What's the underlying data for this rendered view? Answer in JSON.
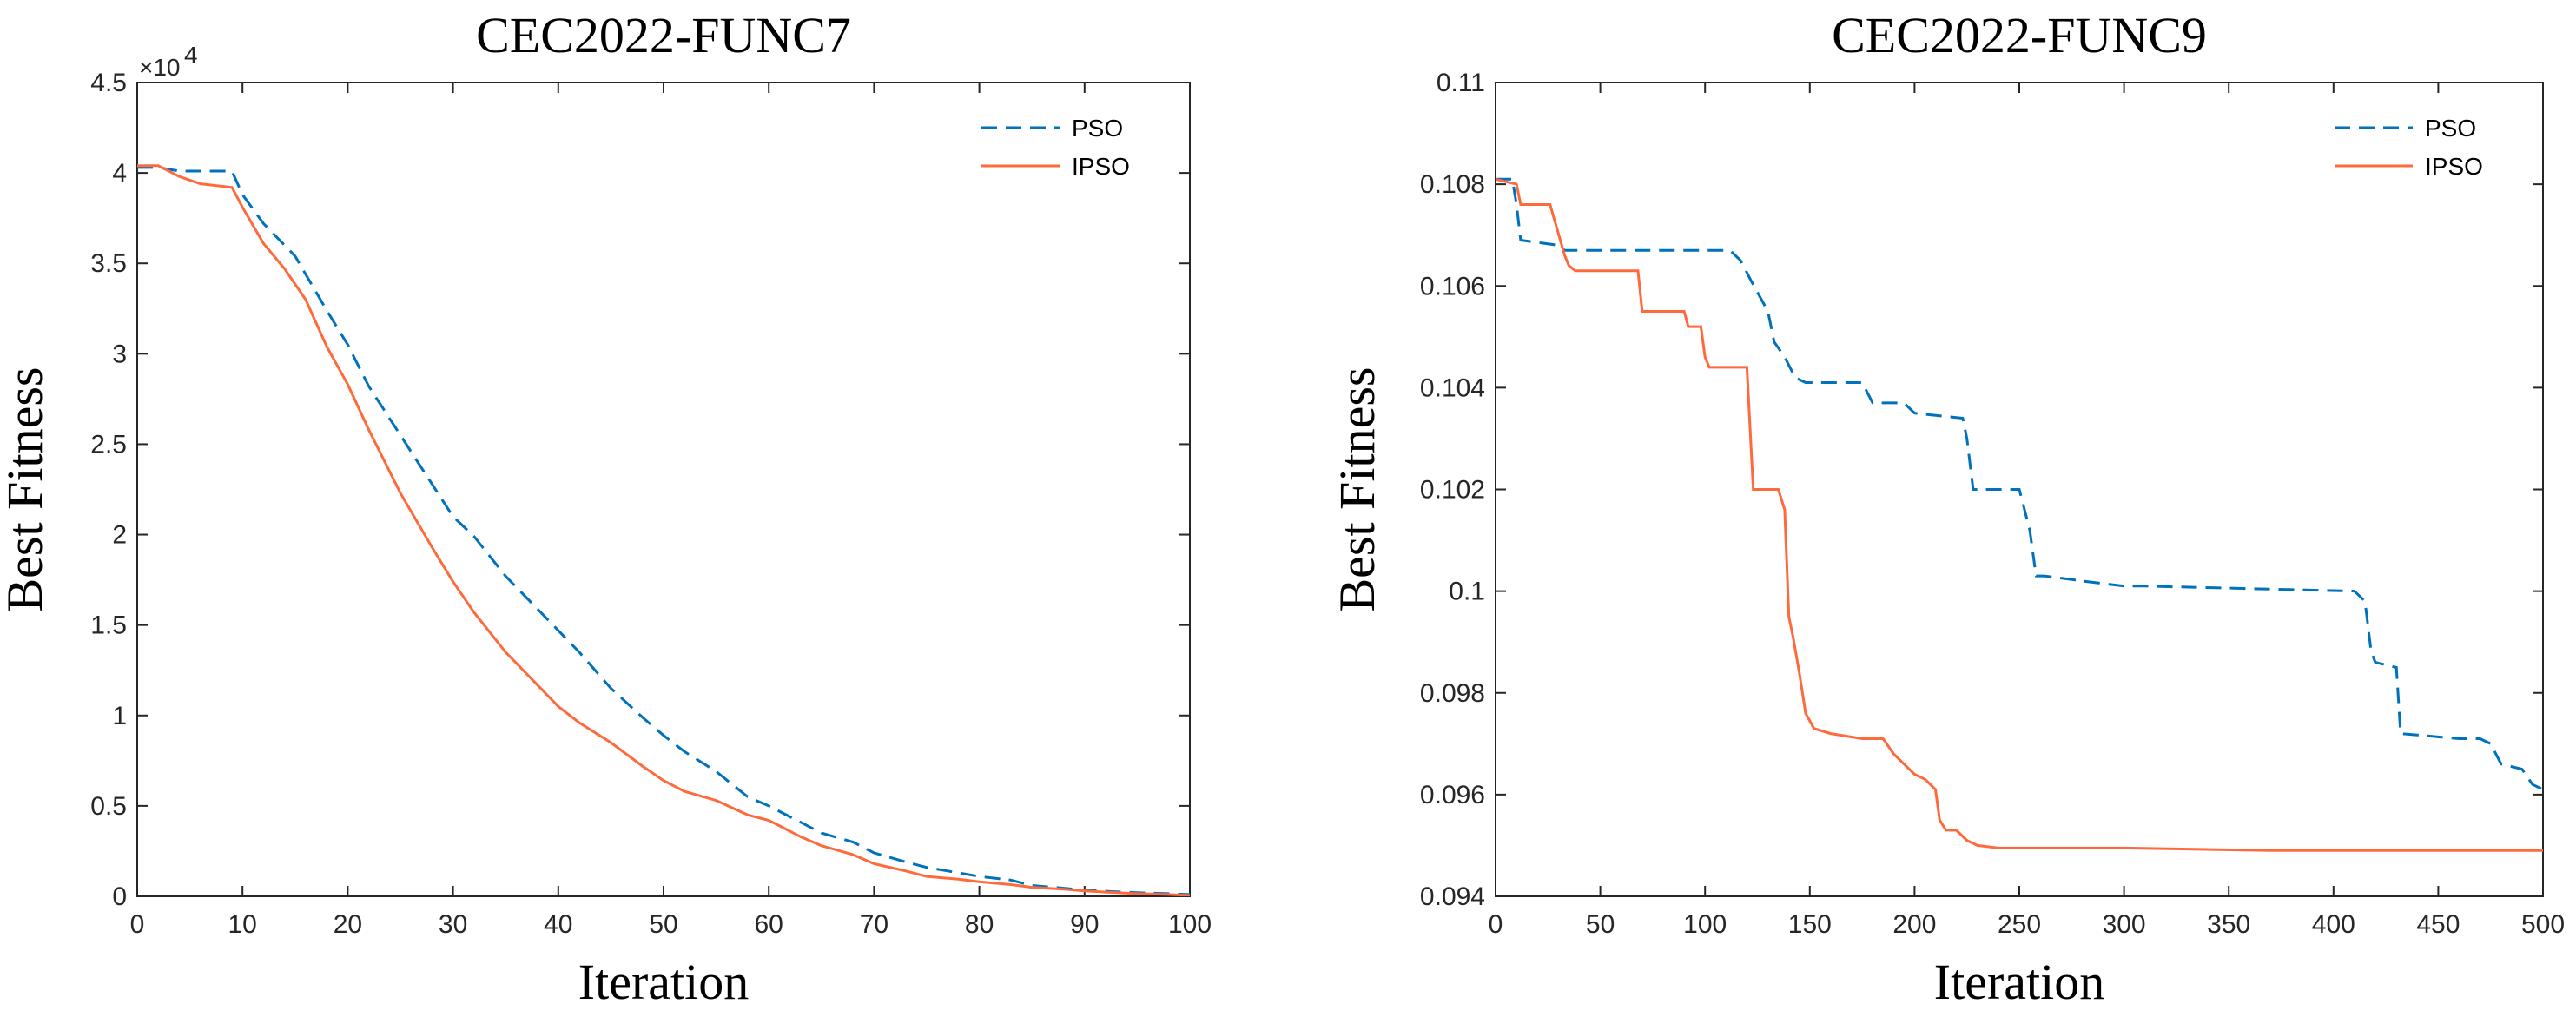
{
  "chart_data": [
    {
      "type": "line",
      "title": "CEC2022-FUNC7",
      "xlabel": "Iteration",
      "ylabel": "Best Fitness",
      "xlim": [
        0,
        100
      ],
      "ylim": [
        0,
        45000
      ],
      "xticks": [
        0,
        10,
        20,
        30,
        40,
        50,
        60,
        70,
        80,
        90,
        100
      ],
      "yticks": [
        0,
        5000,
        10000,
        15000,
        20000,
        25000,
        30000,
        35000,
        40000,
        45000
      ],
      "ytick_labels": [
        "0",
        "0.5",
        "1",
        "1.5",
        "2",
        "2.5",
        "3",
        "3.5",
        "4",
        "4.5"
      ],
      "y_exponent_label": "×10",
      "y_exponent_power": "4",
      "legend_position": "top-right",
      "series": [
        {
          "name": "PSO",
          "color": "#0072BD",
          "style": "dashed",
          "x": [
            0,
            2,
            4,
            9,
            10,
            12,
            15,
            18,
            20,
            22,
            25,
            28,
            30,
            32,
            35,
            38,
            40,
            42,
            45,
            48,
            50,
            52,
            55,
            58,
            60,
            63,
            65,
            68,
            70,
            73,
            75,
            78,
            80,
            83,
            85,
            88,
            90,
            93,
            95,
            98,
            100
          ],
          "y": [
            40300,
            40300,
            40100,
            40100,
            38800,
            37200,
            35400,
            32400,
            30500,
            28200,
            25500,
            22800,
            21000,
            19900,
            17700,
            15900,
            14700,
            13500,
            11500,
            9900,
            8900,
            8000,
            6900,
            5500,
            5000,
            4100,
            3500,
            3000,
            2400,
            1900,
            1600,
            1300,
            1100,
            900,
            600,
            450,
            350,
            250,
            200,
            150,
            100
          ]
        },
        {
          "name": "IPSO",
          "color": "#FF6A3D",
          "style": "solid",
          "x": [
            0,
            2,
            4,
            6,
            9,
            10,
            12,
            14,
            16,
            18,
            20,
            22,
            25,
            28,
            30,
            32,
            35,
            38,
            40,
            42,
            45,
            48,
            50,
            52,
            55,
            58,
            60,
            63,
            65,
            68,
            70,
            73,
            75,
            78,
            80,
            83,
            85,
            88,
            90,
            93,
            95,
            98,
            100
          ],
          "y": [
            40400,
            40400,
            39800,
            39400,
            39200,
            38100,
            36100,
            34700,
            33000,
            30400,
            28300,
            25800,
            22300,
            19300,
            17400,
            15700,
            13500,
            11700,
            10500,
            9600,
            8500,
            7200,
            6400,
            5800,
            5300,
            4500,
            4200,
            3300,
            2800,
            2300,
            1800,
            1400,
            1100,
            950,
            800,
            650,
            500,
            400,
            300,
            200,
            150,
            100,
            50
          ]
        }
      ]
    },
    {
      "type": "line",
      "title": "CEC2022-FUNC9",
      "xlabel": "Iteration",
      "ylabel": "Best Fitness",
      "xlim": [
        0,
        500
      ],
      "ylim": [
        0.094,
        0.11
      ],
      "xticks": [
        0,
        50,
        100,
        150,
        200,
        250,
        300,
        350,
        400,
        450,
        500
      ],
      "yticks": [
        0.094,
        0.096,
        0.098,
        0.1,
        0.102,
        0.104,
        0.106,
        0.108,
        0.11
      ],
      "ytick_labels": [
        "0.094",
        "0.096",
        "0.098",
        "0.1",
        "0.102",
        "0.104",
        "0.106",
        "0.108",
        "0.11"
      ],
      "legend_position": "top-right",
      "series": [
        {
          "name": "PSO",
          "color": "#0072BD",
          "style": "dashed",
          "x": [
            0,
            8,
            10,
            12,
            30,
            33,
            50,
            112,
            117,
            122,
            130,
            133,
            138,
            143,
            148,
            175,
            180,
            195,
            200,
            223,
            225,
            228,
            230,
            250,
            255,
            258,
            262,
            280,
            300,
            310,
            410,
            415,
            418,
            420,
            430,
            432,
            460,
            470,
            475,
            480,
            490,
            495,
            500
          ],
          "y": [
            0.1081,
            0.1081,
            0.1076,
            0.1069,
            0.1068,
            0.1067,
            0.1067,
            0.1067,
            0.1065,
            0.1061,
            0.1055,
            0.1049,
            0.1046,
            0.1042,
            0.1041,
            0.1041,
            0.1037,
            0.1037,
            0.1035,
            0.1034,
            0.103,
            0.102,
            0.102,
            0.102,
            0.1012,
            0.1003,
            0.1003,
            0.1002,
            0.1001,
            0.1001,
            0.1,
            0.0998,
            0.0988,
            0.0986,
            0.0985,
            0.0972,
            0.0971,
            0.0971,
            0.097,
            0.0966,
            0.0965,
            0.0962,
            0.0961
          ]
        },
        {
          "name": "IPSO",
          "color": "#FF6A3D",
          "style": "solid",
          "x": [
            0,
            10,
            12,
            14,
            26,
            33,
            35,
            38,
            40,
            68,
            70,
            90,
            92,
            98,
            100,
            102,
            120,
            123,
            135,
            138,
            140,
            142,
            145,
            148,
            152,
            160,
            175,
            185,
            190,
            195,
            200,
            205,
            210,
            212,
            215,
            220,
            225,
            230,
            240,
            300,
            370,
            450,
            500
          ],
          "y": [
            0.1081,
            0.108,
            0.1076,
            0.1076,
            0.1076,
            0.1066,
            0.1064,
            0.1063,
            0.1063,
            0.1063,
            0.1055,
            0.1055,
            0.1052,
            0.1052,
            0.1046,
            0.1044,
            0.1044,
            0.102,
            0.102,
            0.1016,
            0.0995,
            0.0991,
            0.0984,
            0.0976,
            0.0973,
            0.0972,
            0.0971,
            0.0971,
            0.0968,
            0.0966,
            0.0964,
            0.0963,
            0.0961,
            0.0955,
            0.0953,
            0.0953,
            0.0951,
            0.095,
            0.09495,
            0.09495,
            0.0949,
            0.0949,
            0.0949
          ]
        }
      ]
    }
  ]
}
